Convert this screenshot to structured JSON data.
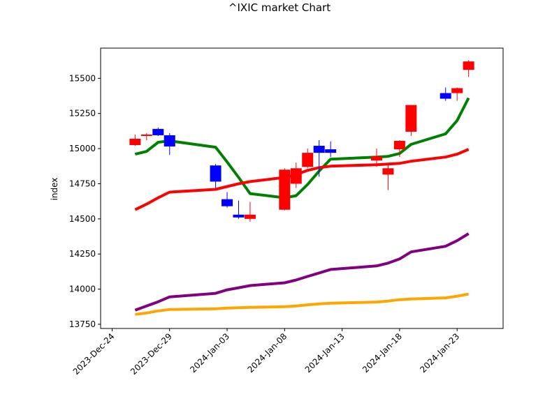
{
  "chart_data": {
    "type": "candlestick",
    "title": "^IXIC market Chart",
    "xlabel": "",
    "ylabel": "index",
    "ylim": [
      13720,
      15715
    ],
    "xlim": [
      "2023-12-23",
      "2024-01-27"
    ],
    "grid": false,
    "legend": "none",
    "y_ticks": [
      13750,
      14000,
      14250,
      14500,
      14750,
      15000,
      15250,
      15500
    ],
    "x_ticks": [
      "2023-Dec-24",
      "2023-Dec-29",
      "2024-Jan-03",
      "2024-Jan-08",
      "2024-Jan-13",
      "2024-Jan-18",
      "2024-Jan-23"
    ],
    "x_tick_dates": [
      "2023-12-24",
      "2023-12-29",
      "2024-01-03",
      "2024-01-08",
      "2024-01-13",
      "2024-01-18",
      "2024-01-23"
    ],
    "up_color": "#0000ff",
    "down_color": "#ff0000",
    "candles": [
      {
        "date": "2023-12-26",
        "open": 15070,
        "high": 15100,
        "low": 15020,
        "close": 15025
      },
      {
        "date": "2023-12-27",
        "open": 15100,
        "high": 15110,
        "low": 15060,
        "close": 15090
      },
      {
        "date": "2023-12-28",
        "open": 15095,
        "high": 15150,
        "low": 15090,
        "close": 15140
      },
      {
        "date": "2023-12-29",
        "open": 15015,
        "high": 15110,
        "low": 14955,
        "close": 15095
      },
      {
        "date": "2024-01-02",
        "open": 14765,
        "high": 14890,
        "low": 14720,
        "close": 14880
      },
      {
        "date": "2024-01-03",
        "open": 14590,
        "high": 14690,
        "low": 14580,
        "close": 14640
      },
      {
        "date": "2024-01-04",
        "open": 14510,
        "high": 14630,
        "low": 14500,
        "close": 14530
      },
      {
        "date": "2024-01-05",
        "open": 14530,
        "high": 14620,
        "low": 14480,
        "close": 14500
      },
      {
        "date": "2024-01-08",
        "open": 14850,
        "high": 14860,
        "low": 14560,
        "close": 14565
      },
      {
        "date": "2024-01-09",
        "open": 14860,
        "high": 14900,
        "low": 14720,
        "close": 14750
      },
      {
        "date": "2024-01-10",
        "open": 14970,
        "high": 15000,
        "low": 14860,
        "close": 14870
      },
      {
        "date": "2024-01-11",
        "open": 14970,
        "high": 15060,
        "low": 14800,
        "close": 15020
      },
      {
        "date": "2024-01-12",
        "open": 14970,
        "high": 15050,
        "low": 14940,
        "close": 14995
      },
      {
        "date": "2024-01-16",
        "open": 14945,
        "high": 15000,
        "low": 14870,
        "close": 14915
      },
      {
        "date": "2024-01-17",
        "open": 14860,
        "high": 14890,
        "low": 14705,
        "close": 14815
      },
      {
        "date": "2024-01-18",
        "open": 15055,
        "high": 15060,
        "low": 14940,
        "close": 14995
      },
      {
        "date": "2024-01-19",
        "open": 15310,
        "high": 15310,
        "low": 15090,
        "close": 15120
      },
      {
        "date": "2024-01-22",
        "open": 15355,
        "high": 15435,
        "low": 15340,
        "close": 15395
      },
      {
        "date": "2024-01-23",
        "open": 15430,
        "high": 15435,
        "low": 15340,
        "close": 15395
      },
      {
        "date": "2024-01-24",
        "open": 15620,
        "high": 15630,
        "low": 15510,
        "close": 15560
      }
    ],
    "series": [
      {
        "color": "#008000",
        "points": [
          [
            "2023-12-26",
            14960
          ],
          [
            "2023-12-27",
            14980
          ],
          [
            "2023-12-28",
            15045
          ],
          [
            "2023-12-29",
            15055
          ],
          [
            "2024-01-02",
            15010
          ],
          [
            "2024-01-03",
            14905
          ],
          [
            "2024-01-04",
            14795
          ],
          [
            "2024-01-05",
            14680
          ],
          [
            "2024-01-08",
            14650
          ],
          [
            "2024-01-09",
            14665
          ],
          [
            "2024-01-10",
            14745
          ],
          [
            "2024-01-11",
            14840
          ],
          [
            "2024-01-12",
            14925
          ],
          [
            "2024-01-16",
            14940
          ],
          [
            "2024-01-17",
            14945
          ],
          [
            "2024-01-18",
            14965
          ],
          [
            "2024-01-19",
            15030
          ],
          [
            "2024-01-22",
            15105
          ],
          [
            "2024-01-23",
            15200
          ],
          [
            "2024-01-24",
            15360
          ]
        ]
      },
      {
        "color": "#ff0000",
        "points": [
          [
            "2023-12-26",
            14565
          ],
          [
            "2023-12-27",
            14605
          ],
          [
            "2023-12-28",
            14650
          ],
          [
            "2023-12-29",
            14690
          ],
          [
            "2024-01-02",
            14710
          ],
          [
            "2024-01-03",
            14730
          ],
          [
            "2024-01-04",
            14750
          ],
          [
            "2024-01-05",
            14765
          ],
          [
            "2024-01-08",
            14795
          ],
          [
            "2024-01-09",
            14815
          ],
          [
            "2024-01-10",
            14845
          ],
          [
            "2024-01-11",
            14865
          ],
          [
            "2024-01-12",
            14875
          ],
          [
            "2024-01-16",
            14885
          ],
          [
            "2024-01-17",
            14890
          ],
          [
            "2024-01-18",
            14895
          ],
          [
            "2024-01-19",
            14910
          ],
          [
            "2024-01-22",
            14940
          ],
          [
            "2024-01-23",
            14960
          ],
          [
            "2024-01-24",
            14995
          ]
        ]
      },
      {
        "color": "#800080",
        "points": [
          [
            "2023-12-26",
            13850
          ],
          [
            "2023-12-27",
            13880
          ],
          [
            "2023-12-28",
            13910
          ],
          [
            "2023-12-29",
            13945
          ],
          [
            "2024-01-02",
            13970
          ],
          [
            "2024-01-03",
            13995
          ],
          [
            "2024-01-04",
            14010
          ],
          [
            "2024-01-05",
            14025
          ],
          [
            "2024-01-08",
            14045
          ],
          [
            "2024-01-09",
            14065
          ],
          [
            "2024-01-10",
            14090
          ],
          [
            "2024-01-11",
            14115
          ],
          [
            "2024-01-12",
            14140
          ],
          [
            "2024-01-16",
            14165
          ],
          [
            "2024-01-17",
            14185
          ],
          [
            "2024-01-18",
            14215
          ],
          [
            "2024-01-19",
            14265
          ],
          [
            "2024-01-22",
            14305
          ],
          [
            "2024-01-23",
            14345
          ],
          [
            "2024-01-24",
            14395
          ]
        ]
      },
      {
        "color": "#ffa500",
        "points": [
          [
            "2023-12-26",
            13820
          ],
          [
            "2023-12-27",
            13830
          ],
          [
            "2023-12-28",
            13845
          ],
          [
            "2023-12-29",
            13855
          ],
          [
            "2024-01-02",
            13860
          ],
          [
            "2024-01-03",
            13865
          ],
          [
            "2024-01-04",
            13868
          ],
          [
            "2024-01-05",
            13870
          ],
          [
            "2024-01-08",
            13875
          ],
          [
            "2024-01-09",
            13880
          ],
          [
            "2024-01-10",
            13888
          ],
          [
            "2024-01-11",
            13895
          ],
          [
            "2024-01-12",
            13900
          ],
          [
            "2024-01-16",
            13908
          ],
          [
            "2024-01-17",
            13915
          ],
          [
            "2024-01-18",
            13925
          ],
          [
            "2024-01-19",
            13930
          ],
          [
            "2024-01-22",
            13938
          ],
          [
            "2024-01-23",
            13950
          ],
          [
            "2024-01-24",
            13965
          ]
        ]
      }
    ]
  }
}
